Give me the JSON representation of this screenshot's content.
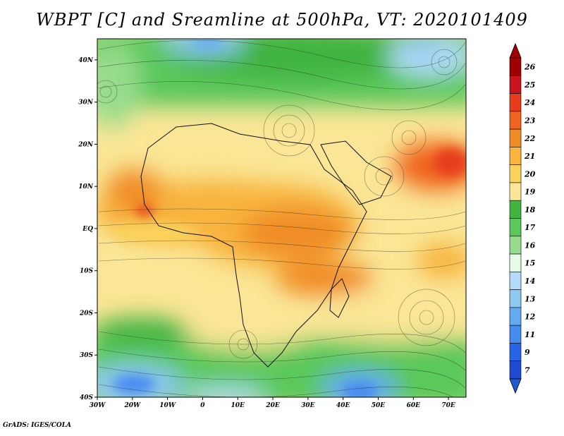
{
  "title": "WBPT [C] and Sreamline at 500hPa, VT: 2020101409",
  "credit": "GrADS: IGES/COLA",
  "map": {
    "lon_range": [
      -30,
      75
    ],
    "lat_range": [
      -40,
      45
    ],
    "x_ticks": [
      "30W",
      "20W",
      "10W",
      "0",
      "10E",
      "20E",
      "30E",
      "40E",
      "50E",
      "60E",
      "70E"
    ],
    "y_ticks": [
      "40N",
      "30N",
      "20N",
      "10N",
      "EQ",
      "10S",
      "20S",
      "30S",
      "40S"
    ]
  },
  "colorbar": {
    "levels": [
      "26",
      "25",
      "24",
      "23",
      "22",
      "21",
      "20",
      "19",
      "18",
      "17",
      "16",
      "15",
      "14",
      "13",
      "12",
      "11",
      "9",
      "7"
    ],
    "colors": [
      "#a00000",
      "#c8141e",
      "#e63c1e",
      "#f0641e",
      "#f08c28",
      "#f8b43c",
      "#fad25a",
      "#fae696",
      "#41b441",
      "#5ac85a",
      "#96dc8c",
      "#e6fae6",
      "#b4dcfa",
      "#8cc8f0",
      "#64aaf0",
      "#468cf0",
      "#2864e6",
      "#1e4bd2"
    ],
    "top_arrow_color": "#a00000",
    "bottom_arrow_color": "#1e5ad2"
  }
}
